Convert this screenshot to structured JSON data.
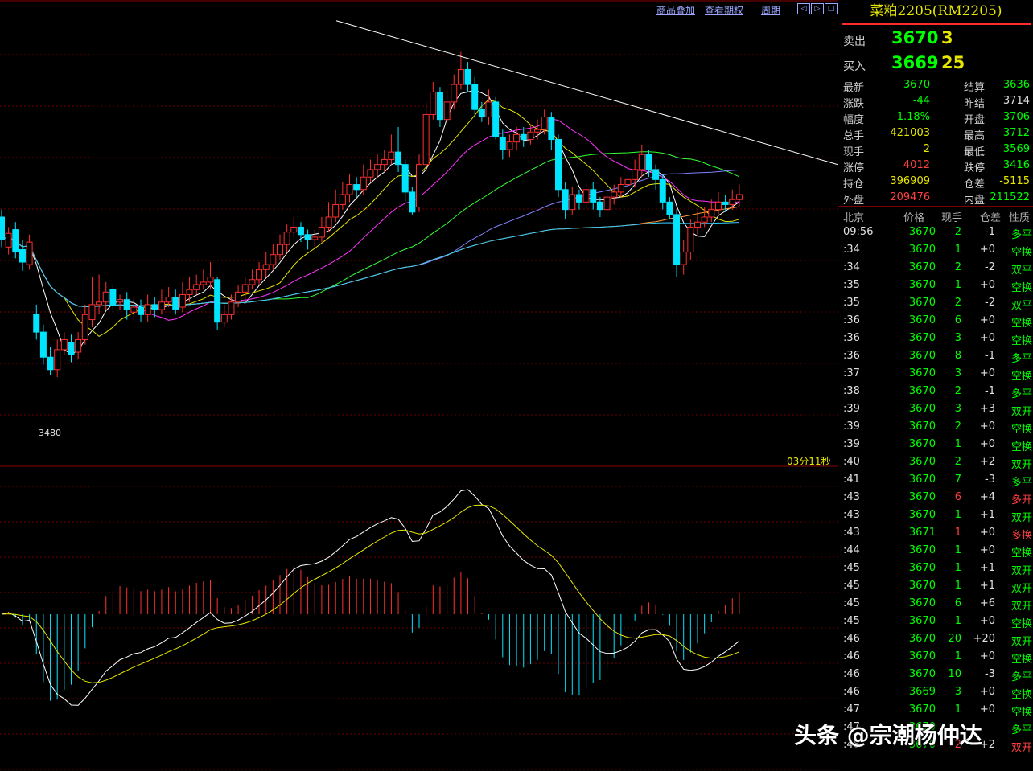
{
  "toolbar": {
    "overlay_label": "商品叠加",
    "options_label": "查看期权",
    "period_label": "周期"
  },
  "chart_info": {
    "timer": "03分11秒",
    "low_label": "3480"
  },
  "chart_data": {
    "type": "candlestick",
    "ylim": [
      3400,
      3760
    ],
    "candles": [
      [
        3598,
        3580,
        3604,
        3574
      ],
      [
        3574,
        3585,
        3590,
        3568
      ],
      [
        3588,
        3570,
        3594,
        3565
      ],
      [
        3572,
        3562,
        3580,
        3555
      ],
      [
        3560,
        3578,
        3584,
        3556
      ],
      [
        3520,
        3506,
        3528,
        3500
      ],
      [
        3506,
        3486,
        3512,
        3480
      ],
      [
        3486,
        3476,
        3494,
        3472
      ],
      [
        3476,
        3492,
        3500,
        3470
      ],
      [
        3492,
        3500,
        3506,
        3488
      ],
      [
        3498,
        3488,
        3504,
        3482
      ],
      [
        3490,
        3500,
        3506,
        3484
      ],
      [
        3500,
        3520,
        3528,
        3496
      ],
      [
        3516,
        3528,
        3550,
        3510
      ],
      [
        3528,
        3530,
        3552,
        3520
      ],
      [
        3530,
        3538,
        3546,
        3524
      ],
      [
        3540,
        3528,
        3544,
        3522
      ],
      [
        3530,
        3532,
        3536,
        3524
      ],
      [
        3532,
        3524,
        3538,
        3516
      ],
      [
        3522,
        3526,
        3534,
        3516
      ],
      [
        3526,
        3520,
        3532,
        3514
      ],
      [
        3520,
        3528,
        3536,
        3514
      ],
      [
        3528,
        3524,
        3534,
        3518
      ],
      [
        3524,
        3530,
        3540,
        3520
      ],
      [
        3530,
        3534,
        3542,
        3526
      ],
      [
        3534,
        3524,
        3540,
        3520
      ],
      [
        3526,
        3536,
        3546,
        3522
      ],
      [
        3536,
        3540,
        3550,
        3530
      ],
      [
        3540,
        3544,
        3552,
        3536
      ],
      [
        3544,
        3546,
        3556,
        3540
      ],
      [
        3546,
        3550,
        3562,
        3540
      ],
      [
        3548,
        3514,
        3550,
        3508
      ],
      [
        3514,
        3520,
        3528,
        3510
      ],
      [
        3520,
        3530,
        3536,
        3516
      ],
      [
        3530,
        3538,
        3544,
        3526
      ],
      [
        3538,
        3544,
        3550,
        3530
      ],
      [
        3544,
        3548,
        3556,
        3540
      ],
      [
        3548,
        3556,
        3562,
        3544
      ],
      [
        3556,
        3560,
        3570,
        3550
      ],
      [
        3560,
        3568,
        3576,
        3556
      ],
      [
        3568,
        3576,
        3584,
        3564
      ],
      [
        3576,
        3586,
        3592,
        3570
      ],
      [
        3586,
        3590,
        3598,
        3582
      ],
      [
        3590,
        3584,
        3594,
        3578
      ],
      [
        3584,
        3580,
        3588,
        3572
      ],
      [
        3580,
        3582,
        3588,
        3574
      ],
      [
        3582,
        3590,
        3598,
        3578
      ],
      [
        3590,
        3598,
        3610,
        3586
      ],
      [
        3598,
        3608,
        3620,
        3594
      ],
      [
        3608,
        3616,
        3626,
        3604
      ],
      [
        3616,
        3624,
        3632,
        3610
      ],
      [
        3624,
        3620,
        3630,
        3614
      ],
      [
        3620,
        3630,
        3640,
        3616
      ],
      [
        3630,
        3636,
        3644,
        3626
      ],
      [
        3636,
        3640,
        3648,
        3630
      ],
      [
        3640,
        3644,
        3652,
        3634
      ],
      [
        3644,
        3650,
        3664,
        3640
      ],
      [
        3650,
        3640,
        3670,
        3634
      ],
      [
        3640,
        3618,
        3644,
        3610
      ],
      [
        3618,
        3602,
        3622,
        3600
      ],
      [
        3606,
        3640,
        3648,
        3602
      ],
      [
        3640,
        3680,
        3690,
        3636
      ],
      [
        3680,
        3698,
        3706,
        3676
      ],
      [
        3698,
        3676,
        3702,
        3670
      ],
      [
        3676,
        3690,
        3700,
        3672
      ],
      [
        3690,
        3704,
        3712,
        3684
      ],
      [
        3704,
        3716,
        3730,
        3700
      ],
      [
        3716,
        3704,
        3722,
        3698
      ],
      [
        3704,
        3684,
        3710,
        3680
      ],
      [
        3684,
        3678,
        3690,
        3674
      ],
      [
        3678,
        3690,
        3700,
        3672
      ],
      [
        3690,
        3662,
        3694,
        3660
      ],
      [
        3662,
        3652,
        3668,
        3644
      ],
      [
        3652,
        3658,
        3664,
        3646
      ],
      [
        3658,
        3664,
        3670,
        3652
      ],
      [
        3664,
        3660,
        3670,
        3654
      ],
      [
        3660,
        3666,
        3672,
        3656
      ],
      [
        3666,
        3668,
        3676,
        3660
      ],
      [
        3668,
        3678,
        3684,
        3664
      ],
      [
        3678,
        3660,
        3682,
        3652
      ],
      [
        3660,
        3620,
        3664,
        3614
      ],
      [
        3620,
        3604,
        3626,
        3596
      ],
      [
        3604,
        3616,
        3622,
        3600
      ],
      [
        3616,
        3610,
        3620,
        3604
      ],
      [
        3610,
        3620,
        3626,
        3604
      ],
      [
        3620,
        3610,
        3626,
        3604
      ],
      [
        3610,
        3604,
        3614,
        3598
      ],
      [
        3604,
        3614,
        3620,
        3600
      ],
      [
        3614,
        3618,
        3624,
        3608
      ],
      [
        3618,
        3624,
        3630,
        3614
      ],
      [
        3624,
        3628,
        3636,
        3618
      ],
      [
        3628,
        3636,
        3644,
        3622
      ],
      [
        3636,
        3648,
        3656,
        3630
      ],
      [
        3648,
        3636,
        3652,
        3630
      ],
      [
        3636,
        3628,
        3640,
        3620
      ],
      [
        3628,
        3610,
        3632,
        3604
      ],
      [
        3610,
        3600,
        3614,
        3596
      ],
      [
        3600,
        3560,
        3604,
        3550
      ],
      [
        3560,
        3570,
        3580,
        3552
      ],
      [
        3570,
        3590,
        3596,
        3564
      ],
      [
        3590,
        3594,
        3602,
        3584
      ],
      [
        3594,
        3598,
        3606,
        3590
      ],
      [
        3598,
        3604,
        3612,
        3594
      ],
      [
        3604,
        3610,
        3618,
        3600
      ],
      [
        3610,
        3608,
        3616,
        3602
      ],
      [
        3608,
        3612,
        3620,
        3604
      ],
      [
        3612,
        3616,
        3624,
        3606
      ]
    ],
    "trendline": [
      [
        3755,
        0
      ],
      [
        3640,
        105
      ]
    ]
  },
  "panel": {
    "title": "菜粕2205(RM2205)",
    "sell_label": "卖出",
    "sell_price": "3670",
    "sell_vol": "3",
    "buy_label": "买入",
    "buy_price": "3669",
    "buy_vol": "25",
    "quotes": [
      {
        "l1": "最新",
        "v1": "3670",
        "c1": "green",
        "l2": "结算",
        "v2": "3636",
        "c2": "green"
      },
      {
        "l1": "涨跌",
        "v1": "-44",
        "c1": "green",
        "l2": "昨结",
        "v2": "3714",
        "c2": "white"
      },
      {
        "l1": "幅度",
        "v1": "-1.18%",
        "c1": "green",
        "l2": "开盘",
        "v2": "3706",
        "c2": "green"
      },
      {
        "l1": "总手",
        "v1": "421003",
        "c1": "yellow",
        "l2": "最高",
        "v2": "3712",
        "c2": "green"
      },
      {
        "l1": "现手",
        "v1": "2",
        "c1": "yellow",
        "l2": "最低",
        "v2": "3569",
        "c2": "green"
      },
      {
        "l1": "涨停",
        "v1": "4012",
        "c1": "red",
        "l2": "跌停",
        "v2": "3416",
        "c2": "green"
      },
      {
        "l1": "持仓",
        "v1": "396909",
        "c1": "yellow",
        "l2": "仓差",
        "v2": "-5115",
        "c2": "yellow"
      },
      {
        "l1": "外盘",
        "v1": "209476",
        "c1": "red",
        "l2": "内盘",
        "v2": "211522",
        "c2": "green"
      }
    ],
    "ticks_header": {
      "time": "北京",
      "price": "价格",
      "vol": "现手",
      "chg": "仓差",
      "nature": "性质"
    },
    "ticks": [
      {
        "t": "09:56",
        "p": "3670",
        "pc": "green",
        "v": "2",
        "vc": "green",
        "c": "-1",
        "n": "多平",
        "nc": "green"
      },
      {
        "t": ":34",
        "p": "3670",
        "pc": "green",
        "v": "1",
        "vc": "green",
        "c": "+0",
        "n": "空换",
        "nc": "green"
      },
      {
        "t": ":34",
        "p": "3670",
        "pc": "green",
        "v": "2",
        "vc": "green",
        "c": "-2",
        "n": "双平",
        "nc": "green"
      },
      {
        "t": ":35",
        "p": "3670",
        "pc": "green",
        "v": "1",
        "vc": "green",
        "c": "+0",
        "n": "空换",
        "nc": "green"
      },
      {
        "t": ":35",
        "p": "3670",
        "pc": "green",
        "v": "2",
        "vc": "green",
        "c": "-2",
        "n": "双平",
        "nc": "green"
      },
      {
        "t": ":36",
        "p": "3670",
        "pc": "green",
        "v": "6",
        "vc": "green",
        "c": "+0",
        "n": "空换",
        "nc": "green"
      },
      {
        "t": ":36",
        "p": "3670",
        "pc": "green",
        "v": "3",
        "vc": "green",
        "c": "+0",
        "n": "空换",
        "nc": "green"
      },
      {
        "t": ":36",
        "p": "3670",
        "pc": "green",
        "v": "8",
        "vc": "green",
        "c": "-1",
        "n": "多平",
        "nc": "green"
      },
      {
        "t": ":37",
        "p": "3670",
        "pc": "green",
        "v": "3",
        "vc": "green",
        "c": "+0",
        "n": "空换",
        "nc": "green"
      },
      {
        "t": ":38",
        "p": "3670",
        "pc": "green",
        "v": "2",
        "vc": "green",
        "c": "-1",
        "n": "多平",
        "nc": "green"
      },
      {
        "t": ":39",
        "p": "3670",
        "pc": "green",
        "v": "3",
        "vc": "green",
        "c": "+3",
        "n": "双开",
        "nc": "green"
      },
      {
        "t": ":39",
        "p": "3670",
        "pc": "green",
        "v": "2",
        "vc": "green",
        "c": "+0",
        "n": "空换",
        "nc": "green"
      },
      {
        "t": ":39",
        "p": "3670",
        "pc": "green",
        "v": "1",
        "vc": "green",
        "c": "+0",
        "n": "空换",
        "nc": "green"
      },
      {
        "t": ":40",
        "p": "3670",
        "pc": "green",
        "v": "2",
        "vc": "green",
        "c": "+2",
        "n": "双开",
        "nc": "green"
      },
      {
        "t": ":41",
        "p": "3670",
        "pc": "green",
        "v": "7",
        "vc": "green",
        "c": "-3",
        "n": "多平",
        "nc": "green"
      },
      {
        "t": ":43",
        "p": "3670",
        "pc": "green",
        "v": "6",
        "vc": "red",
        "c": "+4",
        "n": "多开",
        "nc": "red"
      },
      {
        "t": ":43",
        "p": "3670",
        "pc": "green",
        "v": "1",
        "vc": "green",
        "c": "+1",
        "n": "双开",
        "nc": "green"
      },
      {
        "t": ":43",
        "p": "3671",
        "pc": "green",
        "v": "1",
        "vc": "red",
        "c": "+0",
        "n": "多换",
        "nc": "red"
      },
      {
        "t": ":44",
        "p": "3670",
        "pc": "green",
        "v": "1",
        "vc": "green",
        "c": "+0",
        "n": "空换",
        "nc": "green"
      },
      {
        "t": ":45",
        "p": "3670",
        "pc": "green",
        "v": "1",
        "vc": "green",
        "c": "+1",
        "n": "双开",
        "nc": "green"
      },
      {
        "t": ":45",
        "p": "3670",
        "pc": "green",
        "v": "1",
        "vc": "green",
        "c": "+1",
        "n": "双开",
        "nc": "green"
      },
      {
        "t": ":45",
        "p": "3670",
        "pc": "green",
        "v": "6",
        "vc": "green",
        "c": "+6",
        "n": "双开",
        "nc": "green"
      },
      {
        "t": ":45",
        "p": "3670",
        "pc": "green",
        "v": "1",
        "vc": "green",
        "c": "+0",
        "n": "空换",
        "nc": "green"
      },
      {
        "t": ":46",
        "p": "3670",
        "pc": "green",
        "v": "20",
        "vc": "green",
        "c": "+20",
        "n": "双开",
        "nc": "green"
      },
      {
        "t": ":46",
        "p": "3670",
        "pc": "green",
        "v": "1",
        "vc": "green",
        "c": "+0",
        "n": "空换",
        "nc": "green"
      },
      {
        "t": ":46",
        "p": "3670",
        "pc": "green",
        "v": "10",
        "vc": "green",
        "c": "-3",
        "n": "多平",
        "nc": "green"
      },
      {
        "t": ":46",
        "p": "3669",
        "pc": "green",
        "v": "3",
        "vc": "green",
        "c": "+0",
        "n": "空换",
        "nc": "green"
      },
      {
        "t": ":47",
        "p": "3670",
        "pc": "green",
        "v": "1",
        "vc": "green",
        "c": "+0",
        "n": "空换",
        "nc": "green"
      },
      {
        "t": ":47",
        "p": "3670",
        "pc": "green",
        "v": "",
        "vc": "green",
        "c": "",
        "n": "多平",
        "nc": "green"
      },
      {
        "t": ":48",
        "p": "3670",
        "pc": "green",
        "v": "2",
        "vc": "red",
        "c": "+2",
        "n": "双开",
        "nc": "red"
      }
    ]
  },
  "watermark": "头条 @宗潮杨仲达",
  "colors": {
    "up": "#ff3030",
    "down": "#00e5ff",
    "grid": "#6a0000"
  }
}
